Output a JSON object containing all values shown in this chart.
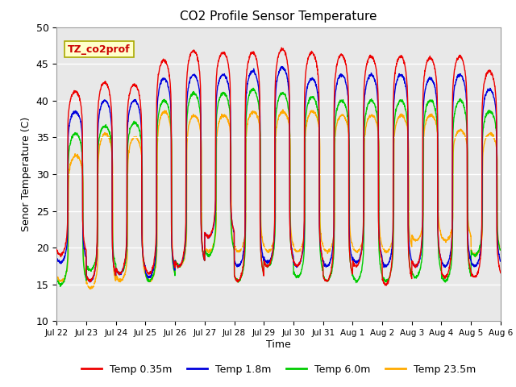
{
  "title": "CO2 Profile Sensor Temperature",
  "ylabel": "Senor Temperature (C)",
  "xlabel": "Time",
  "ylim": [
    10,
    50
  ],
  "annotation_text": "TZ_co2prof",
  "annotation_color": "#cc0000",
  "annotation_bg": "#ffffcc",
  "annotation_border": "#aaaa00",
  "bg_color": "#e8e8e8",
  "series": [
    {
      "label": "Temp 0.35m",
      "color": "#ee0000"
    },
    {
      "label": "Temp 1.8m",
      "color": "#0000dd"
    },
    {
      "label": "Temp 6.0m",
      "color": "#00cc00"
    },
    {
      "label": "Temp 23.5m",
      "color": "#ffaa00"
    }
  ],
  "x_tick_labels": [
    "Jul 22",
    "Jul 23",
    "Jul 24",
    "Jul 25",
    "Jul 26",
    "Jul 27",
    "Jul 28",
    "Jul 29",
    "Jul 30",
    "Jul 31",
    "Aug 1",
    "Aug 2",
    "Aug 3",
    "Aug 4",
    "Aug 5",
    "Aug 6"
  ],
  "peaks_0_35": [
    41.2,
    42.5,
    42.2,
    45.5,
    46.8,
    46.5,
    46.5,
    47.0,
    46.5,
    46.2,
    46.0,
    46.0,
    45.8,
    46.0,
    44.0
  ],
  "troughs_0_35": [
    19.0,
    15.5,
    16.5,
    16.5,
    17.5,
    21.5,
    15.5,
    17.5,
    17.5,
    15.5,
    17.5,
    15.0,
    17.5,
    16.0,
    16.0
  ],
  "peaks_1_8": [
    38.5,
    40.0,
    40.0,
    43.0,
    43.5,
    43.5,
    44.0,
    44.5,
    43.0,
    43.5,
    43.5,
    43.5,
    43.0,
    43.5,
    41.5
  ],
  "troughs_1_8": [
    18.0,
    15.5,
    16.5,
    16.0,
    17.5,
    21.5,
    17.5,
    18.0,
    17.5,
    17.5,
    18.0,
    17.5,
    17.5,
    17.5,
    17.5
  ],
  "peaks_6_0": [
    35.5,
    36.5,
    37.0,
    40.0,
    41.0,
    41.0,
    41.5,
    41.0,
    40.5,
    40.0,
    40.0,
    40.0,
    40.0,
    40.0,
    38.5
  ],
  "troughs_6_0": [
    15.0,
    17.0,
    16.5,
    15.5,
    17.5,
    19.0,
    15.5,
    17.5,
    16.0,
    15.5,
    15.5,
    15.5,
    16.0,
    15.5,
    19.0
  ],
  "peaks_23_5": [
    32.5,
    35.5,
    35.0,
    38.5,
    38.0,
    38.0,
    38.5,
    38.5,
    38.5,
    38.0,
    38.0,
    38.0,
    38.0,
    36.0,
    35.5
  ],
  "troughs_23_5": [
    15.5,
    14.5,
    15.5,
    15.5,
    17.5,
    19.5,
    19.5,
    19.5,
    19.5,
    19.5,
    19.5,
    19.5,
    21.0,
    21.0,
    19.0
  ]
}
